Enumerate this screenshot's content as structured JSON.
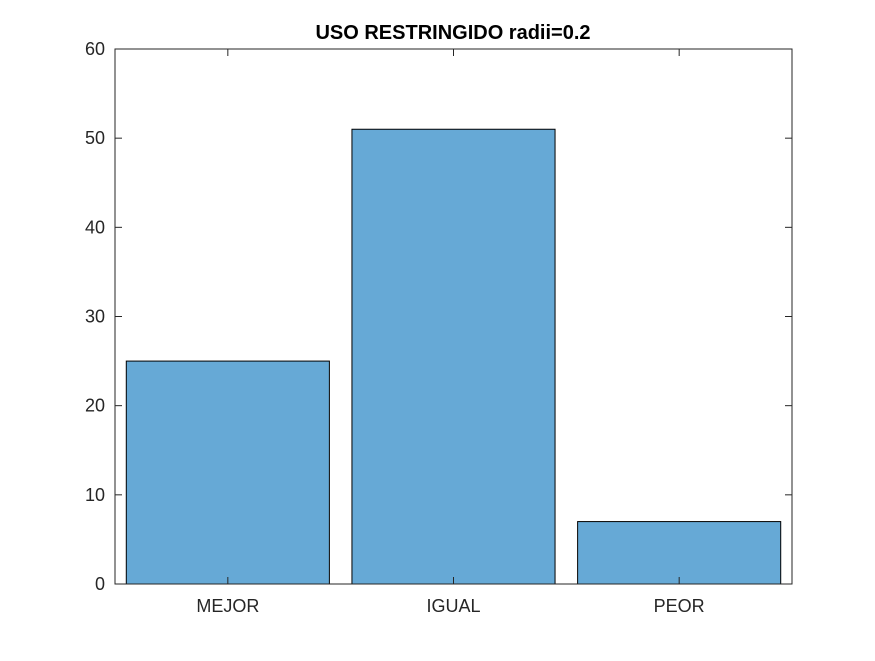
{
  "chart_data": {
    "type": "bar",
    "title": "USO RESTRINGIDO radii=0.2",
    "xlabel": "",
    "ylabel": "",
    "categories": [
      "MEJOR",
      "IGUAL",
      "PEOR"
    ],
    "values": [
      25,
      51,
      7
    ],
    "ylim": [
      0,
      60
    ],
    "yticks": [
      "0",
      "10",
      "20",
      "30",
      "40",
      "50",
      "60"
    ],
    "grid": false,
    "legend": "none",
    "bar_color": "#66a9d6",
    "bar_edge_color": "#000000"
  }
}
